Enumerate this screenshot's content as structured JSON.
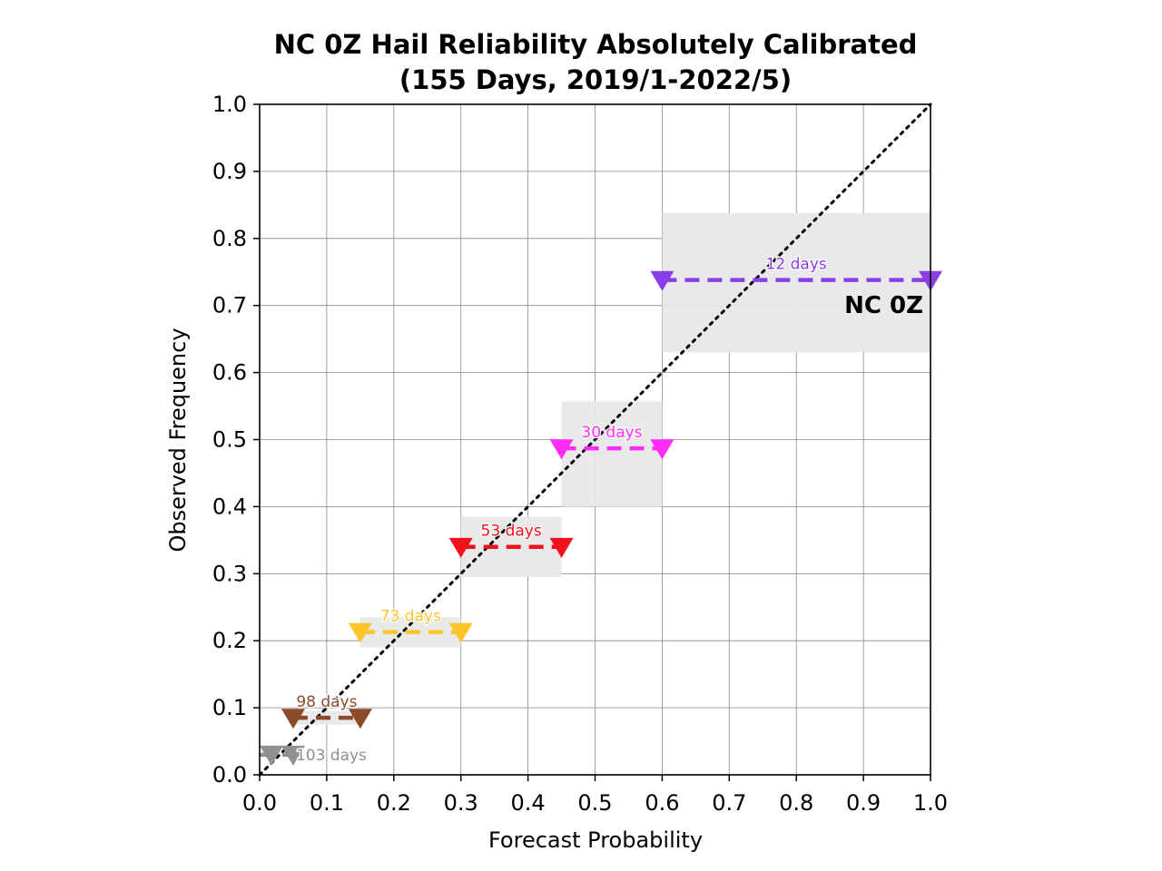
{
  "chart_data": {
    "type": "line",
    "title": "NC 0Z Hail Reliability Absolutely Calibrated",
    "subtitle": "(155 Days, 2019/1-2022/5)",
    "xlabel": "Forecast Probability",
    "ylabel": "Observed Frequency",
    "xlim": [
      0,
      1
    ],
    "ylim": [
      0,
      1
    ],
    "xticks": [
      "0.0",
      "0.1",
      "0.2",
      "0.3",
      "0.4",
      "0.5",
      "0.6",
      "0.7",
      "0.8",
      "0.9",
      "1.0"
    ],
    "yticks": [
      "0.0",
      "0.1",
      "0.2",
      "0.3",
      "0.4",
      "0.5",
      "0.6",
      "0.7",
      "0.8",
      "0.9",
      "1.0"
    ],
    "grid": true,
    "diagonal_reference": true,
    "annotation": "NC 0Z",
    "bins": [
      {
        "x_low": 0.0,
        "x_high": 0.05,
        "observed": 0.03,
        "range_low": 0.03,
        "range_high": 0.03,
        "label": "103 days",
        "color": "#909090"
      },
      {
        "x_low": 0.05,
        "x_high": 0.15,
        "observed": 0.085,
        "range_low": 0.075,
        "range_high": 0.095,
        "label": "98 days",
        "color": "#8b4a2b"
      },
      {
        "x_low": 0.15,
        "x_high": 0.3,
        "observed": 0.213,
        "range_low": 0.19,
        "range_high": 0.235,
        "label": "73 days",
        "color": "#fbc52a"
      },
      {
        "x_low": 0.3,
        "x_high": 0.45,
        "observed": 0.34,
        "range_low": 0.295,
        "range_high": 0.385,
        "label": "53 days",
        "color": "#f2101c"
      },
      {
        "x_low": 0.45,
        "x_high": 0.6,
        "observed": 0.487,
        "range_low": 0.4,
        "range_high": 0.557,
        "label": "30 days",
        "color": "#ff2cf7"
      },
      {
        "x_low": 0.6,
        "x_high": 1.0,
        "observed": 0.738,
        "range_low": 0.63,
        "range_high": 0.838,
        "label": "12 days",
        "color": "#8a3fe6"
      }
    ]
  }
}
